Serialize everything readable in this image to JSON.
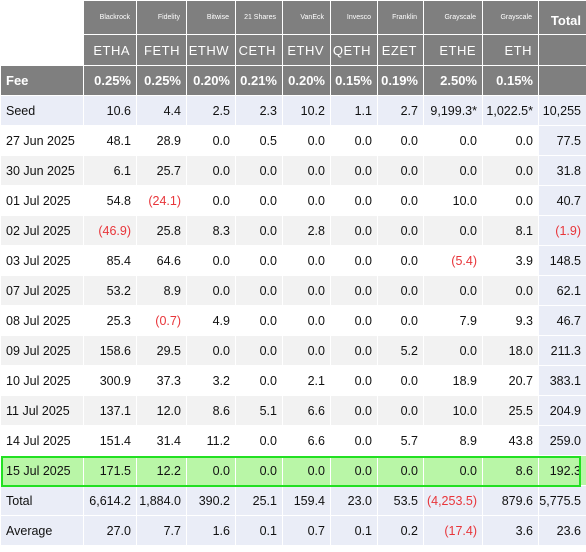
{
  "header": {
    "issuers": [
      "Blackrock",
      "Fidelity",
      "Bitwise",
      "21 Shares",
      "VanEck",
      "Invesco",
      "Franklin",
      "Grayscale",
      "Grayscale"
    ],
    "tickers": [
      "ETHA",
      "FETH",
      "ETHW",
      "CETH",
      "ETHV",
      "QETH",
      "EZET",
      "ETHE",
      "ETH"
    ],
    "total_label": "Total",
    "fee_label": "Fee",
    "fees": [
      "0.25%",
      "0.25%",
      "0.20%",
      "0.21%",
      "0.20%",
      "0.15%",
      "0.19%",
      "2.50%",
      "0.15%"
    ]
  },
  "rows": [
    {
      "label": "Seed",
      "cells": [
        "10.6",
        "4.4",
        "2.5",
        "2.3",
        "10.2",
        "1.1",
        "2.7",
        "9,199.3*",
        "1,022.5*"
      ],
      "total": "10,255"
    },
    {
      "label": "27 Jun 2025",
      "cells": [
        "48.1",
        "28.9",
        "0.0",
        "0.5",
        "0.0",
        "0.0",
        "0.0",
        "0.0",
        "0.0"
      ],
      "total": "77.5"
    },
    {
      "label": "30 Jun 2025",
      "cells": [
        "6.1",
        "25.7",
        "0.0",
        "0.0",
        "0.0",
        "0.0",
        "0.0",
        "0.0",
        "0.0"
      ],
      "total": "31.8"
    },
    {
      "label": "01 Jul 2025",
      "cells": [
        "54.8",
        "(24.1)",
        "0.0",
        "0.0",
        "0.0",
        "0.0",
        "0.0",
        "10.0",
        "0.0"
      ],
      "total": "40.7"
    },
    {
      "label": "02 Jul 2025",
      "cells": [
        "(46.9)",
        "25.8",
        "8.3",
        "0.0",
        "2.8",
        "0.0",
        "0.0",
        "0.0",
        "8.1"
      ],
      "total": "(1.9)"
    },
    {
      "label": "03 Jul 2025",
      "cells": [
        "85.4",
        "64.6",
        "0.0",
        "0.0",
        "0.0",
        "0.0",
        "0.0",
        "(5.4)",
        "3.9"
      ],
      "total": "148.5"
    },
    {
      "label": "07 Jul 2025",
      "cells": [
        "53.2",
        "8.9",
        "0.0",
        "0.0",
        "0.0",
        "0.0",
        "0.0",
        "0.0",
        "0.0"
      ],
      "total": "62.1"
    },
    {
      "label": "08 Jul 2025",
      "cells": [
        "25.3",
        "(0.7)",
        "4.9",
        "0.0",
        "0.0",
        "0.0",
        "0.0",
        "7.9",
        "9.3"
      ],
      "total": "46.7"
    },
    {
      "label": "09 Jul 2025",
      "cells": [
        "158.6",
        "29.5",
        "0.0",
        "0.0",
        "0.0",
        "0.0",
        "5.2",
        "0.0",
        "18.0"
      ],
      "total": "211.3"
    },
    {
      "label": "10 Jul 2025",
      "cells": [
        "300.9",
        "37.3",
        "3.2",
        "0.0",
        "2.1",
        "0.0",
        "0.0",
        "18.9",
        "20.7"
      ],
      "total": "383.1"
    },
    {
      "label": "11 Jul 2025",
      "cells": [
        "137.1",
        "12.0",
        "8.6",
        "5.1",
        "6.6",
        "0.0",
        "0.0",
        "10.0",
        "25.5"
      ],
      "total": "204.9"
    },
    {
      "label": "14 Jul 2025",
      "cells": [
        "151.4",
        "31.4",
        "11.2",
        "0.0",
        "6.6",
        "0.0",
        "5.7",
        "8.9",
        "43.8"
      ],
      "total": "259.0"
    },
    {
      "label": "15 Jul 2025",
      "cells": [
        "171.5",
        "12.2",
        "0.0",
        "0.0",
        "0.0",
        "0.0",
        "0.0",
        "0.0",
        "8.6"
      ],
      "total": "192.3"
    },
    {
      "label": "Total",
      "cells": [
        "6,614.2",
        "1,884.0",
        "390.2",
        "25.1",
        "159.4",
        "23.0",
        "53.5",
        "(4,253.5)",
        "879.6"
      ],
      "total": "5,775.5"
    },
    {
      "label": "Average",
      "cells": [
        "27.0",
        "7.7",
        "1.6",
        "0.1",
        "0.7",
        "0.1",
        "0.2",
        "(17.4)",
        "3.6"
      ],
      "total": "23.6"
    }
  ],
  "highlight_color": "#22e022",
  "negative_color": "#e8353a"
}
